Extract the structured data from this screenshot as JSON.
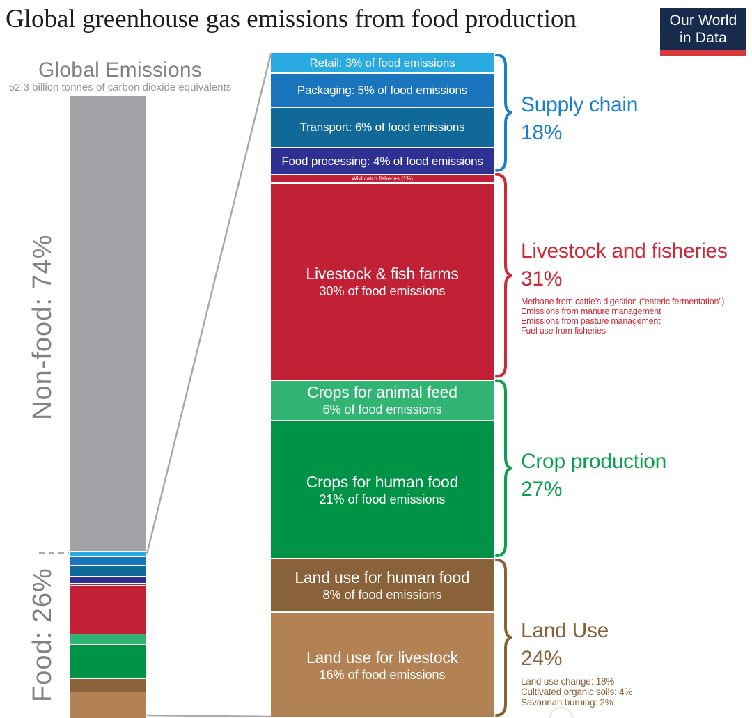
{
  "title": "Global greenhouse gas emissions from food production",
  "logo": {
    "line1": "Our World",
    "line2": "in Data"
  },
  "left_chart": {
    "heading": "Global Emissions",
    "subheading": "52.3 billion tonnes of carbon dioxide equivalents",
    "non_food_label": "Non-food: 74%",
    "food_label": "Food: 26%",
    "bar_color": "#A1A3A6"
  },
  "chart_data": {
    "type": "bar",
    "title": "Global greenhouse gas emissions from food production",
    "global_total_label": "52.3 billion tonnes of carbon dioxide equivalents",
    "global_split": {
      "non_food_pct": 74,
      "food_pct": 26
    },
    "units": "% of food emissions",
    "segments": [
      {
        "id": "retail",
        "label": "Retail: 3% of food emissions",
        "pct": 3,
        "color": "#29ABE2",
        "group": "supply-chain",
        "text": "single"
      },
      {
        "id": "packaging",
        "label": "Packaging: 5% of food emissions",
        "pct": 5,
        "color": "#1B75BC",
        "group": "supply-chain",
        "text": "single"
      },
      {
        "id": "transport",
        "label": "Transport: 6% of food emissions",
        "pct": 6,
        "color": "#11699A",
        "group": "supply-chain",
        "text": "single"
      },
      {
        "id": "food-processing",
        "label": "Food processing: 4% of food emissions",
        "pct": 4,
        "color": "#2E3192",
        "group": "supply-chain",
        "text": "single"
      },
      {
        "id": "wild-catch-fisheries",
        "label": "Wild catch fisheries (1%)",
        "pct": 1,
        "color": "#C22035",
        "group": "livestock-and-fisheries",
        "text": "tiny"
      },
      {
        "id": "livestock-fish-farms",
        "label": "Livestock & fish farms",
        "sublabel": "30% of food emissions",
        "pct": 30,
        "color": "#C22035",
        "group": "livestock-and-fisheries",
        "text": "double"
      },
      {
        "id": "crops-animal-feed",
        "label": "Crops for animal feed",
        "sublabel": "6% of food emissions",
        "pct": 6,
        "color": "#32B474",
        "group": "crop-production",
        "text": "double"
      },
      {
        "id": "crops-human-food",
        "label": "Crops for human food",
        "sublabel": "21% of food emissions",
        "pct": 21,
        "color": "#009245",
        "group": "crop-production",
        "text": "double"
      },
      {
        "id": "land-use-human-food",
        "label": "Land use for human food",
        "sublabel": "8% of food emissions",
        "pct": 8,
        "color": "#8A6239",
        "group": "land-use",
        "text": "double"
      },
      {
        "id": "land-use-livestock",
        "label": "Land use for livestock",
        "sublabel": "16% of food emissions",
        "pct": 16,
        "color": "#B28255",
        "group": "land-use",
        "text": "double"
      }
    ],
    "groups": [
      {
        "id": "supply-chain",
        "label": "Supply chain",
        "pct_label": "18%",
        "pct": 18,
        "color": "#1C7FCE",
        "sublines": []
      },
      {
        "id": "livestock-and-fisheries",
        "label": "Livestock and fisheries",
        "pct_label": "31%",
        "pct": 31,
        "color": "#CC2936",
        "sublines": [
          "Methane from cattle’s digestion (“enteric fermentation”)",
          "Emissions from manure management",
          "Emissions from pasture management",
          "Fuel use from fisheries"
        ]
      },
      {
        "id": "crop-production",
        "label": "Crop production",
        "pct_label": "27%",
        "pct": 27,
        "color": "#0CA04E",
        "sublines": []
      },
      {
        "id": "land-use",
        "label": "Land Use",
        "pct_label": "24%",
        "pct": 24,
        "color": "#8A6239",
        "sublines": [
          "Land use change: 18%",
          "Cultivated organic soils: 4%",
          "Savannah burning: 2%"
        ]
      }
    ]
  }
}
